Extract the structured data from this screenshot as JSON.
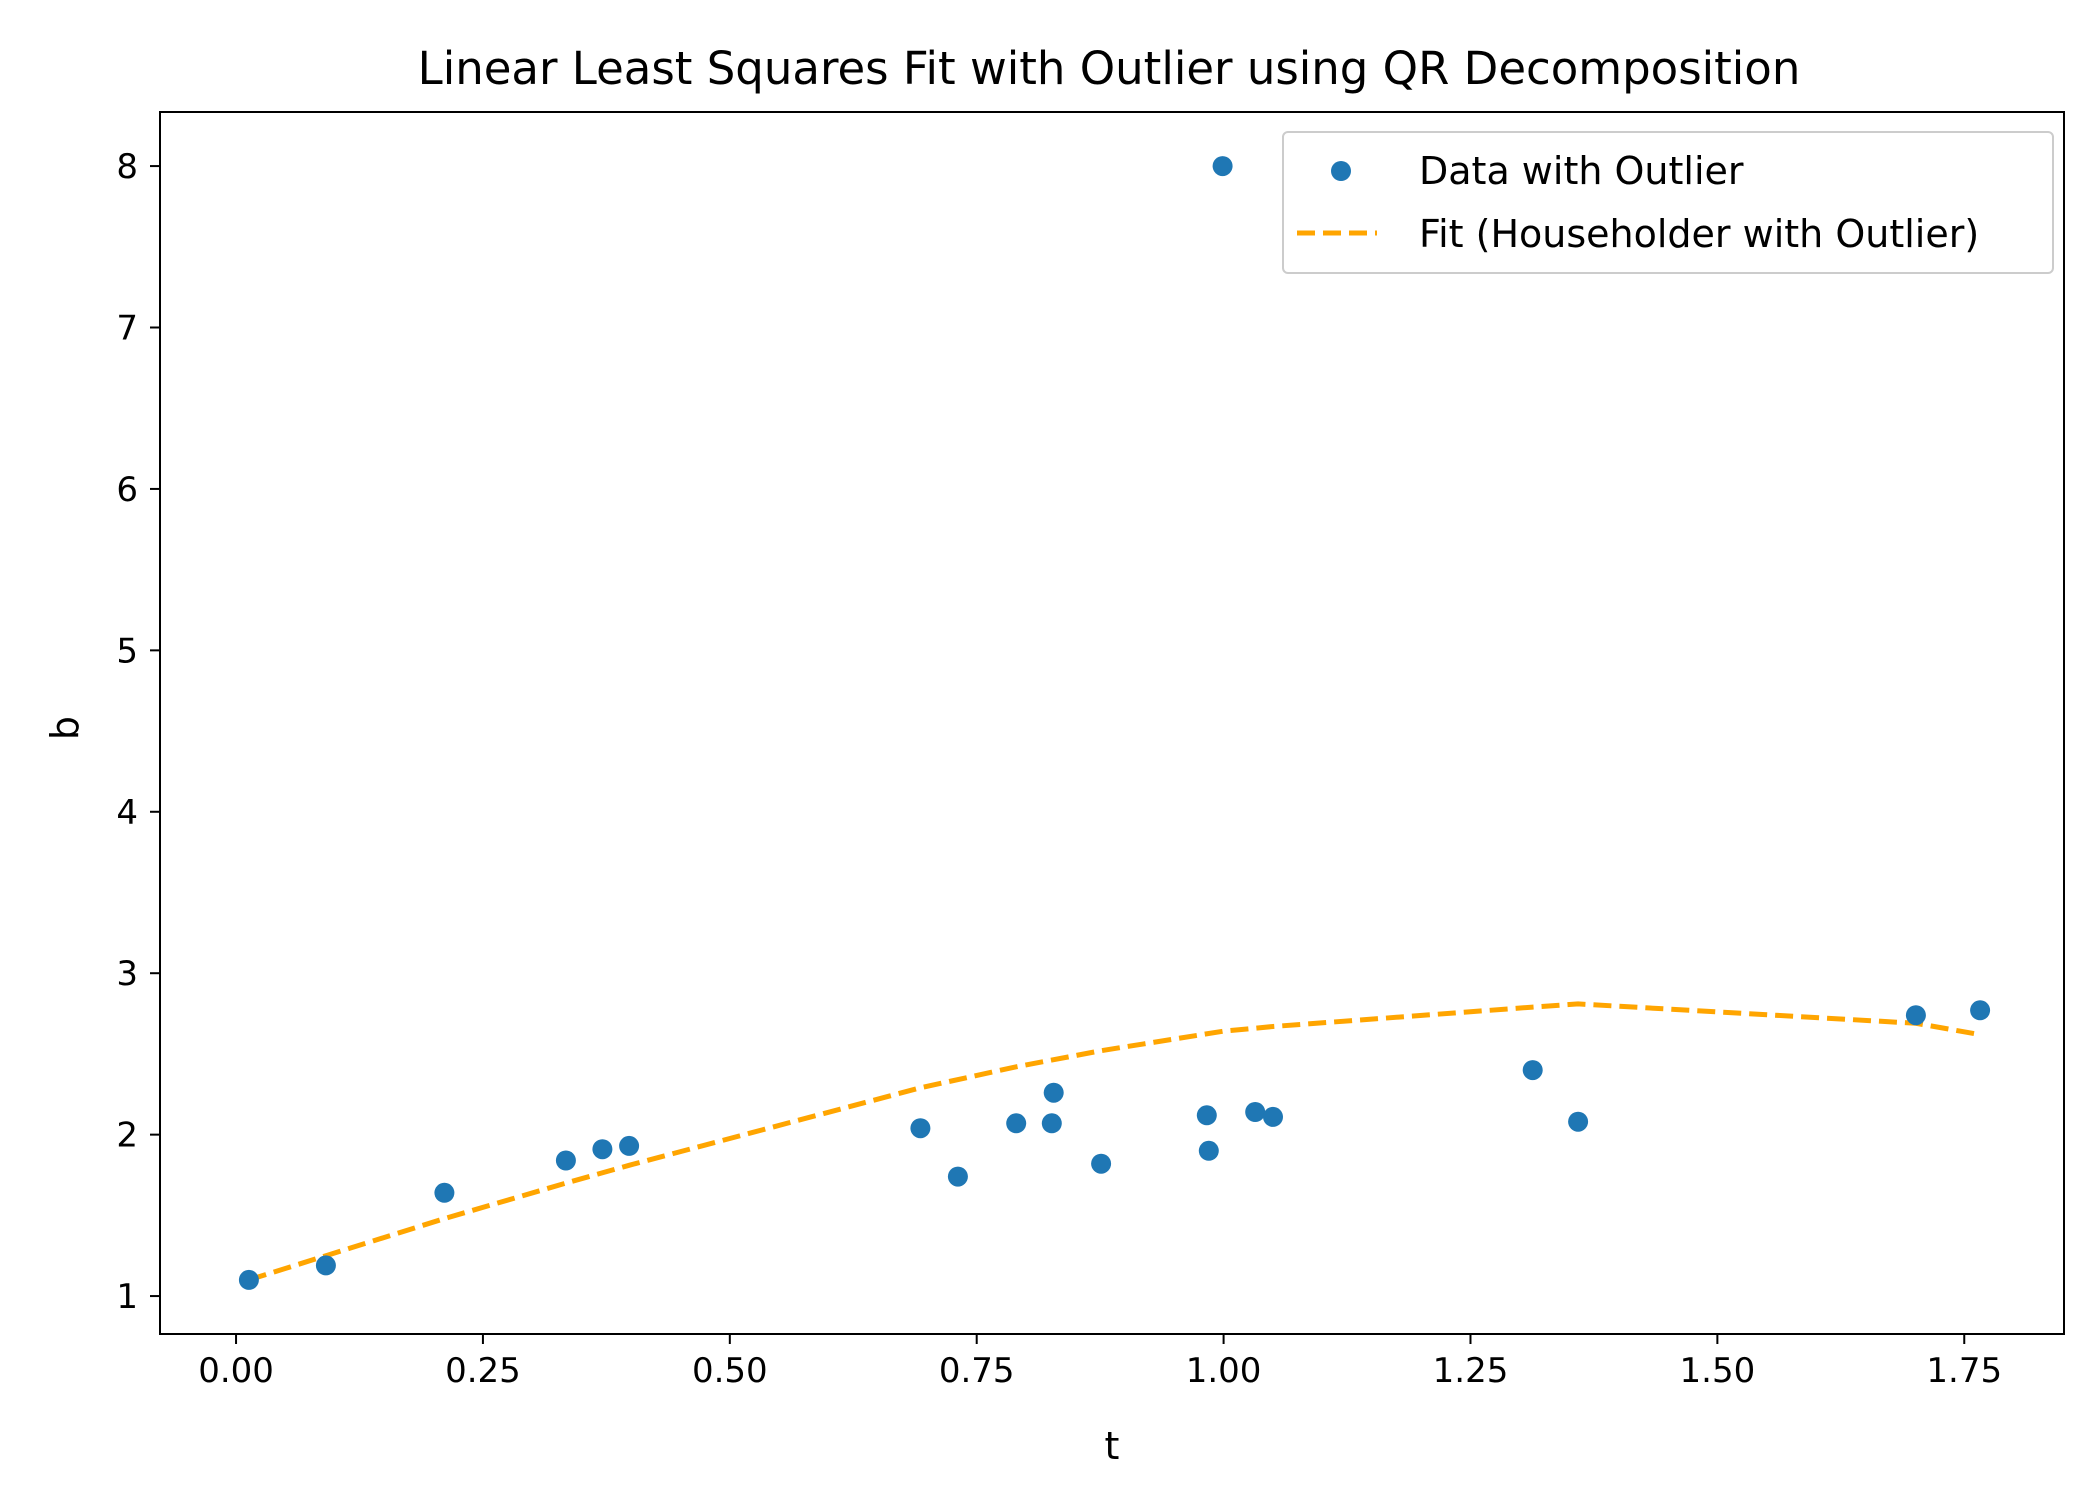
{
  "chart_data": {
    "type": "scatter",
    "title": "Linear Least Squares Fit with Outlier using QR Decomposition",
    "xlabel": "t",
    "ylabel": "b",
    "xlim": [
      -0.077,
      1.851
    ],
    "ylim": [
      0.765,
      8.335
    ],
    "xticks": [
      0.0,
      0.25,
      0.5,
      0.75,
      1.0,
      1.25,
      1.5,
      1.75
    ],
    "xtick_labels": [
      "0.00",
      "0.25",
      "0.50",
      "0.75",
      "1.00",
      "1.25",
      "1.50",
      "1.75"
    ],
    "yticks": [
      1,
      2,
      3,
      4,
      5,
      6,
      7,
      8
    ],
    "ytick_labels": [
      "1",
      "2",
      "3",
      "4",
      "5",
      "6",
      "7",
      "8"
    ],
    "grid": false,
    "legend_position": "upper-right",
    "series": [
      {
        "name": "Data with Outlier",
        "kind": "scatter",
        "color": "#1f77b4",
        "points": [
          [
            0.013,
            1.1
          ],
          [
            0.091,
            1.19
          ],
          [
            0.211,
            1.64
          ],
          [
            0.334,
            1.84
          ],
          [
            0.371,
            1.91
          ],
          [
            0.398,
            1.93
          ],
          [
            0.693,
            2.04
          ],
          [
            0.731,
            1.74
          ],
          [
            0.79,
            2.07
          ],
          [
            0.826,
            2.07
          ],
          [
            0.828,
            2.26
          ],
          [
            0.876,
            1.82
          ],
          [
            0.983,
            2.12
          ],
          [
            0.985,
            1.9
          ],
          [
            0.999,
            8.0
          ],
          [
            1.032,
            2.14
          ],
          [
            1.05,
            2.11
          ],
          [
            1.313,
            2.4
          ],
          [
            1.359,
            2.08
          ],
          [
            1.701,
            2.74
          ],
          [
            1.766,
            2.77
          ]
        ]
      },
      {
        "name": "Fit (Householder with Outlier)",
        "kind": "line",
        "style": "dashed",
        "color": "#ffa500",
        "points": [
          [
            0.013,
            1.1
          ],
          [
            0.091,
            1.25
          ],
          [
            0.211,
            1.48
          ],
          [
            0.334,
            1.7
          ],
          [
            0.398,
            1.81
          ],
          [
            0.693,
            2.29
          ],
          [
            0.79,
            2.42
          ],
          [
            0.876,
            2.52
          ],
          [
            0.999,
            2.64
          ],
          [
            1.05,
            2.67
          ],
          [
            1.313,
            2.79
          ],
          [
            1.359,
            2.81
          ],
          [
            1.701,
            2.69
          ],
          [
            1.766,
            2.62
          ]
        ]
      }
    ]
  }
}
